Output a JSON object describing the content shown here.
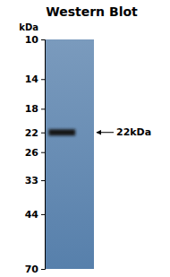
{
  "chart_data": {
    "type": "gel",
    "title": "Western Blot",
    "log": "y",
    "ylabel": "kDa",
    "ylim": [
      10,
      70
    ],
    "yticks": [
      70,
      44,
      33,
      26,
      22,
      18,
      14,
      10
    ],
    "tick_labels": "y",
    "values": [
      22
    ],
    "color": "#171717",
    "annotations": [
      "22kDa"
    ]
  }
}
